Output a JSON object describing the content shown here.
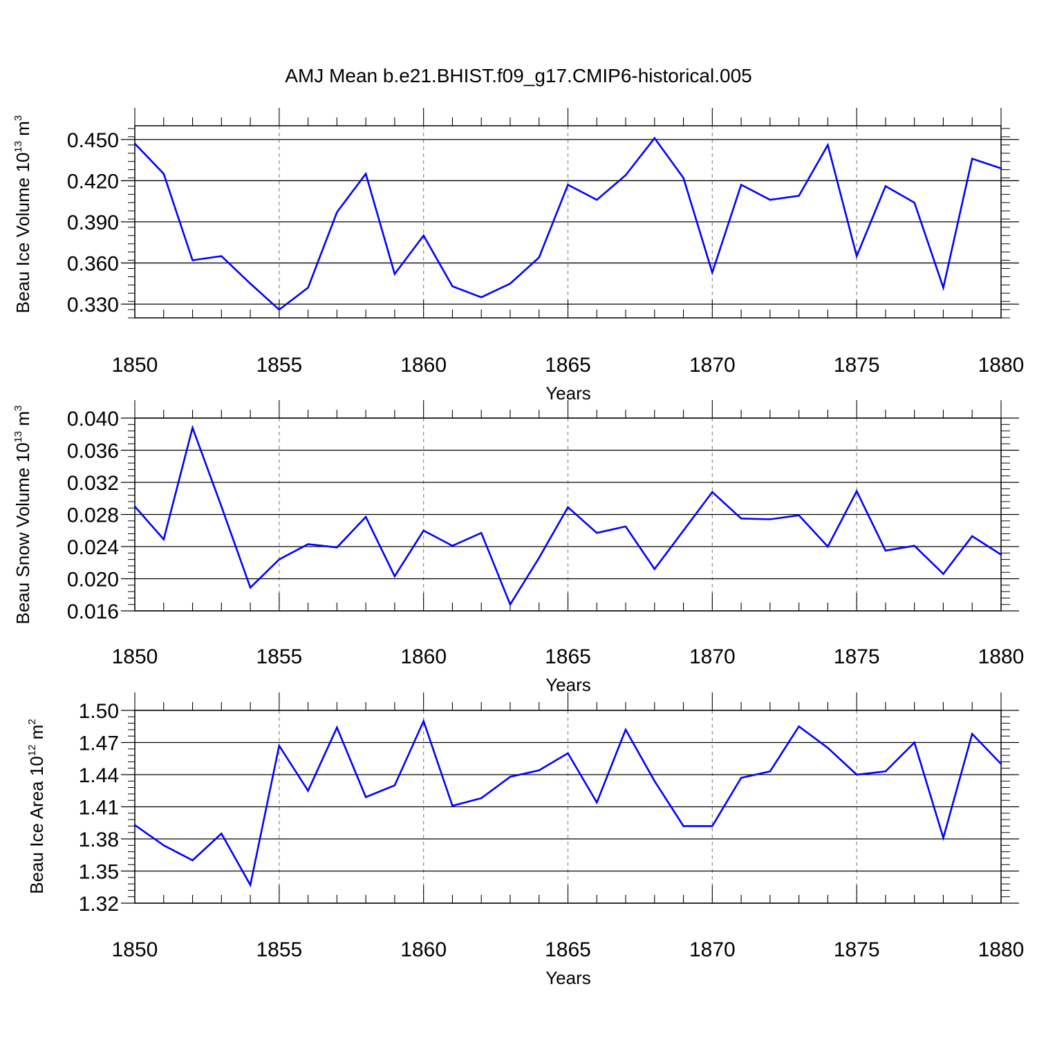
{
  "title": "AMJ Mean b.e21.BHIST.f09_g17.CMIP6-historical.005",
  "style": {
    "line_color": "#0000ff",
    "grid_color": "#888888",
    "axis_color": "#000000"
  },
  "chart_data": [
    {
      "type": "line",
      "name": "ice-volume",
      "ylabel_parts": {
        "prefix": "Beau Ice Volume 10",
        "exp": "13",
        "unit": " m",
        "unit_exp": "3"
      },
      "xlabel": "Years",
      "xlim": [
        1850,
        1880
      ],
      "ylim": [
        0.32,
        0.46
      ],
      "x_ticks": [
        1850,
        1855,
        1860,
        1865,
        1870,
        1875,
        1880
      ],
      "x_tick_labels": [
        "1850",
        "1855",
        "1860",
        "1865",
        "1870",
        "1875",
        "1880"
      ],
      "y_ticks": [
        0.33,
        0.36,
        0.39,
        0.42,
        0.45
      ],
      "y_tick_labels": [
        "0.330",
        "0.360",
        "0.390",
        "0.420",
        "0.450"
      ],
      "y_minor_step": 0.006,
      "x": [
        1850,
        1851,
        1852,
        1853,
        1854,
        1855,
        1856,
        1857,
        1858,
        1859,
        1860,
        1861,
        1862,
        1863,
        1864,
        1865,
        1866,
        1867,
        1868,
        1869,
        1870,
        1871,
        1872,
        1873,
        1874,
        1875,
        1876,
        1877,
        1878,
        1879,
        1880
      ],
      "values": [
        0.447,
        0.425,
        0.362,
        0.365,
        0.345,
        0.326,
        0.342,
        0.397,
        0.425,
        0.352,
        0.38,
        0.343,
        0.335,
        0.345,
        0.364,
        0.417,
        0.406,
        0.424,
        0.451,
        0.422,
        0.353,
        0.417,
        0.406,
        0.409,
        0.446,
        0.365,
        0.416,
        0.404,
        0.342,
        0.436,
        0.429
      ]
    },
    {
      "type": "line",
      "name": "snow-volume",
      "ylabel_parts": {
        "prefix": "Beau Snow Volume 10",
        "exp": "13",
        "unit": " m",
        "unit_exp": "3"
      },
      "xlabel": "Years",
      "xlim": [
        1850,
        1880
      ],
      "ylim": [
        0.016,
        0.04
      ],
      "x_ticks": [
        1850,
        1855,
        1860,
        1865,
        1870,
        1875,
        1880
      ],
      "x_tick_labels": [
        "1850",
        "1855",
        "1860",
        "1865",
        "1870",
        "1875",
        "1880"
      ],
      "y_ticks": [
        0.016,
        0.02,
        0.024,
        0.028,
        0.032,
        0.036,
        0.04
      ],
      "y_tick_labels": [
        "0.016",
        "0.020",
        "0.024",
        "0.028",
        "0.032",
        "0.036",
        "0.040"
      ],
      "y_minor_step": 0.0008,
      "x": [
        1850,
        1851,
        1852,
        1853,
        1854,
        1855,
        1856,
        1857,
        1858,
        1859,
        1860,
        1861,
        1862,
        1863,
        1864,
        1865,
        1866,
        1867,
        1868,
        1869,
        1870,
        1871,
        1872,
        1873,
        1874,
        1875,
        1876,
        1877,
        1878,
        1879,
        1880
      ],
      "values": [
        0.029,
        0.0249,
        0.0388,
        0.029,
        0.0189,
        0.0224,
        0.0243,
        0.0239,
        0.0277,
        0.0203,
        0.026,
        0.0241,
        0.0257,
        0.0168,
        0.0226,
        0.0289,
        0.0257,
        0.0265,
        0.0212,
        0.026,
        0.0308,
        0.0275,
        0.0274,
        0.0279,
        0.024,
        0.0309,
        0.0235,
        0.0241,
        0.0206,
        0.0253,
        0.023
      ]
    },
    {
      "type": "line",
      "name": "ice-area",
      "ylabel_parts": {
        "prefix": "Beau Ice Area 10",
        "exp": "12",
        "unit": " m",
        "unit_exp": "2"
      },
      "xlabel": "Years",
      "xlim": [
        1850,
        1880
      ],
      "ylim": [
        1.32,
        1.5
      ],
      "x_ticks": [
        1850,
        1855,
        1860,
        1865,
        1870,
        1875,
        1880
      ],
      "x_tick_labels": [
        "1850",
        "1855",
        "1860",
        "1865",
        "1870",
        "1875",
        "1880"
      ],
      "y_ticks": [
        1.32,
        1.35,
        1.38,
        1.41,
        1.44,
        1.47,
        1.5
      ],
      "y_tick_labels": [
        "1.32",
        "1.35",
        "1.38",
        "1.41",
        "1.44",
        "1.47",
        "1.50"
      ],
      "y_minor_step": 0.006,
      "x": [
        1850,
        1851,
        1852,
        1853,
        1854,
        1855,
        1856,
        1857,
        1858,
        1859,
        1860,
        1861,
        1862,
        1863,
        1864,
        1865,
        1866,
        1867,
        1868,
        1869,
        1870,
        1871,
        1872,
        1873,
        1874,
        1875,
        1876,
        1877,
        1878,
        1879,
        1880
      ],
      "values": [
        1.393,
        1.374,
        1.36,
        1.385,
        1.337,
        1.467,
        1.425,
        1.484,
        1.419,
        1.43,
        1.49,
        1.411,
        1.418,
        1.438,
        1.444,
        1.46,
        1.414,
        1.482,
        1.434,
        1.392,
        1.392,
        1.437,
        1.443,
        1.485,
        1.465,
        1.44,
        1.443,
        1.47,
        1.381,
        1.478,
        1.45
      ]
    }
  ]
}
